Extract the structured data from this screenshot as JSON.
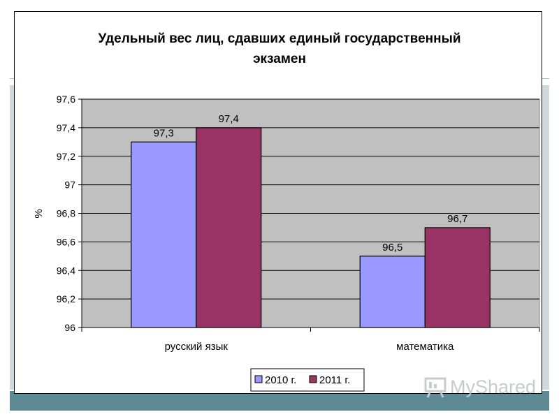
{
  "chart_data": {
    "type": "bar",
    "title_lines": [
      "Удельный вес лиц, сдавших единый государственный",
      "экзамен"
    ],
    "categories": [
      "русский язык",
      "математика"
    ],
    "series": [
      {
        "name": "2010 г.",
        "values": [
          97.3,
          96.5
        ],
        "color": "#9999ff",
        "labels": [
          "97,3",
          "96,5"
        ]
      },
      {
        "name": "2011 г.",
        "values": [
          97.4,
          96.7
        ],
        "color": "#993366",
        "labels": [
          "97,4",
          "96,7"
        ]
      }
    ],
    "ylabel": "%",
    "ylim": [
      96,
      97.6
    ],
    "yticks": [
      "96",
      "96,2",
      "96,4",
      "96,6",
      "96,8",
      "97",
      "97,2",
      "97,4",
      "97,6"
    ],
    "ytick_values": [
      96,
      96.2,
      96.4,
      96.6,
      96.8,
      97,
      97.2,
      97.4,
      97.6
    ],
    "plot_background": "#c0c0c0",
    "grid": true,
    "legend_position": "bottom"
  },
  "watermark": {
    "text": "MyShared"
  }
}
